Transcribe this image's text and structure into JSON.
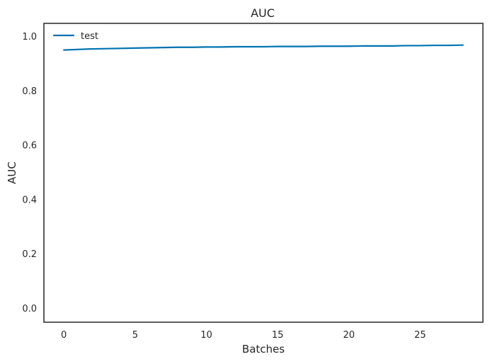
{
  "chart_data": {
    "type": "line",
    "title": "AUC",
    "xlabel": "Batches",
    "ylabel": "AUC",
    "xlim": [
      -1.4,
      29.4
    ],
    "ylim": [
      -0.05,
      1.05
    ],
    "xticks": [
      0,
      5,
      10,
      15,
      20,
      25
    ],
    "yticks": [
      0.0,
      0.2,
      0.4,
      0.6,
      0.8,
      1.0
    ],
    "xtick_labels": [
      "0",
      "5",
      "10",
      "15",
      "20",
      "25"
    ],
    "ytick_labels": [
      "0.0",
      "0.2",
      "0.4",
      "0.6",
      "0.8",
      "1.0"
    ],
    "grid": false,
    "legend": {
      "placement": "top-left"
    },
    "series": [
      {
        "name": "test",
        "color": "#0072b2",
        "x": [
          0,
          1,
          2,
          3,
          4,
          5,
          6,
          7,
          8,
          9,
          10,
          11,
          12,
          13,
          14,
          15,
          16,
          17,
          18,
          19,
          20,
          21,
          22,
          23,
          24,
          25,
          26,
          27,
          28
        ],
        "y": [
          0.952,
          0.954,
          0.956,
          0.957,
          0.958,
          0.959,
          0.96,
          0.961,
          0.962,
          0.962,
          0.963,
          0.963,
          0.964,
          0.964,
          0.964,
          0.965,
          0.965,
          0.965,
          0.966,
          0.966,
          0.966,
          0.967,
          0.967,
          0.967,
          0.968,
          0.968,
          0.969,
          0.969,
          0.97
        ]
      }
    ]
  }
}
